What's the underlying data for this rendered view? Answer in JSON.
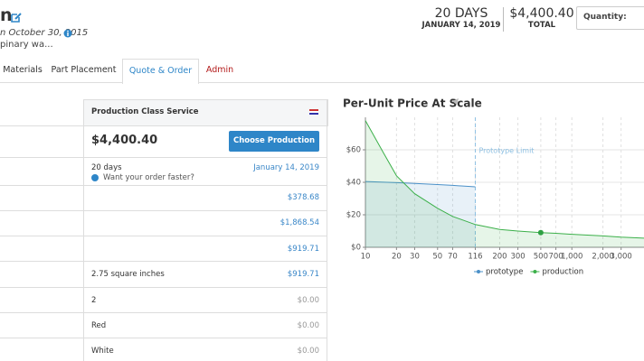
{
  "header": {
    "title": "n",
    "date": "n October 30, 2015",
    "description": "pinary wa...",
    "lead_days": "20 DAYS",
    "ship_date": "JANUARY 14, 2019",
    "total": "$4,400.40",
    "total_label": "TOTAL",
    "quantity_label": "Quantity:"
  },
  "tabs": [
    "Materials",
    "Part Placement",
    "Quote & Order",
    "Admin"
  ],
  "panel": {
    "title": "Production Class Service",
    "price": "$4,400.40",
    "button": "Choose Production",
    "lead_time": "20 days",
    "ship_date": "January 14, 2019",
    "faster": "Want your order faster?",
    "rows": [
      {
        "value": "$378.68",
        "color": "#3a87c8"
      },
      {
        "value": "$1,868.54",
        "color": "#3a87c8"
      },
      {
        "value": "$919.71",
        "color": "#3a87c8"
      },
      {
        "label": "2.75 square inches",
        "value": "$919.71",
        "color": "#3a87c8"
      },
      {
        "label": "2",
        "value": "$0.00",
        "color": "#999999"
      },
      {
        "label": "Red",
        "value": "$0.00",
        "color": "#999999"
      },
      {
        "label": "White",
        "value": "$0.00",
        "color": "#999999"
      }
    ]
  },
  "chart_data": {
    "type": "line",
    "title": "Per-Unit Price At Scale",
    "log_x": true,
    "grid": true,
    "xlim": [
      10,
      5000
    ],
    "ylim": [
      0,
      80
    ],
    "xticks": [
      10,
      20,
      30,
      50,
      70,
      116,
      200,
      300,
      500,
      700,
      {
        "value": 1000,
        "label": "1,000"
      },
      {
        "value": 2000,
        "label": "2,000"
      },
      {
        "value": 3000,
        "label": "3,000"
      }
    ],
    "yticks": [
      {
        "value": 0,
        "label": "$0"
      },
      {
        "value": 20,
        "label": "$20"
      },
      {
        "value": 40,
        "label": "$40"
      },
      {
        "value": 60,
        "label": "$60"
      }
    ],
    "series": [
      {
        "name": "prototype",
        "color": "#4a90c8",
        "x": [
          10,
          20,
          30,
          50,
          70,
          116
        ],
        "values": [
          40.5,
          39.8,
          39.3,
          38.6,
          38.1,
          37.2
        ]
      },
      {
        "name": "production",
        "color": "#3cb04a",
        "x": [
          10,
          15,
          20,
          30,
          50,
          70,
          116,
          200,
          300,
          500,
          700,
          1000,
          2000,
          3000,
          5000
        ],
        "values": [
          78,
          58,
          44,
          33,
          24,
          19,
          14,
          11,
          10,
          9,
          8.6,
          8,
          7,
          6.2,
          5.6
        ]
      }
    ],
    "highlight": {
      "x": 500,
      "value": 9,
      "color": "#2ea043"
    },
    "annotations": [
      {
        "text": "Prototype Limit",
        "x": 116,
        "color": "#8fc1e3"
      }
    ]
  }
}
